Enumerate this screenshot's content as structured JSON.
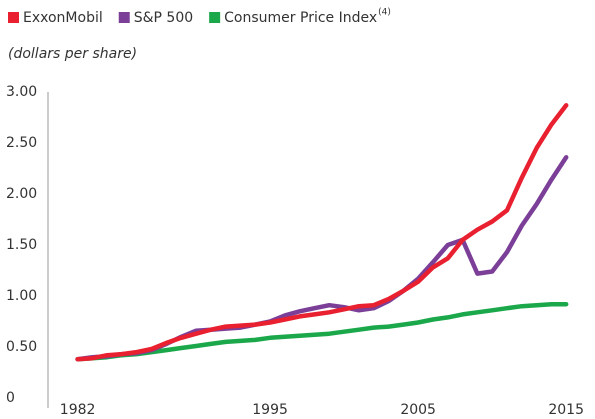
{
  "chart_data": {
    "type": "line",
    "subtitle": "(dollars per share)",
    "x": [
      1982,
      1983,
      1984,
      1985,
      1986,
      1987,
      1988,
      1989,
      1990,
      1991,
      1992,
      1993,
      1994,
      1995,
      1996,
      1997,
      1998,
      1999,
      2000,
      2001,
      2002,
      2003,
      2004,
      2005,
      2006,
      2007,
      2008,
      2009,
      2010,
      2011,
      2012,
      2013,
      2014,
      2015
    ],
    "series": [
      {
        "name": "ExxonMobil",
        "color": "#e8202f",
        "values": [
          0.38,
          0.39,
          0.42,
          0.43,
          0.45,
          0.48,
          0.54,
          0.59,
          0.63,
          0.67,
          0.7,
          0.71,
          0.72,
          0.74,
          0.77,
          0.8,
          0.82,
          0.84,
          0.87,
          0.9,
          0.91,
          0.97,
          1.05,
          1.14,
          1.28,
          1.37,
          1.55,
          1.65,
          1.73,
          1.84,
          2.16,
          2.45,
          2.68,
          2.87
        ]
      },
      {
        "name": "S&P 500",
        "color": "#7b3f98",
        "values": [
          0.38,
          0.4,
          0.41,
          0.43,
          0.44,
          0.47,
          0.53,
          0.6,
          0.66,
          0.67,
          0.68,
          0.69,
          0.72,
          0.75,
          0.81,
          0.85,
          0.88,
          0.91,
          0.89,
          0.86,
          0.88,
          0.95,
          1.05,
          1.17,
          1.33,
          1.5,
          1.55,
          1.22,
          1.24,
          1.43,
          1.69,
          1.9,
          2.14,
          2.36
        ]
      },
      {
        "name": "Consumer Price Index",
        "note": "(4)",
        "color": "#1aa84b",
        "values": [
          0.38,
          0.39,
          0.4,
          0.42,
          0.43,
          0.45,
          0.47,
          0.49,
          0.51,
          0.53,
          0.55,
          0.56,
          0.57,
          0.59,
          0.6,
          0.61,
          0.62,
          0.63,
          0.65,
          0.67,
          0.69,
          0.7,
          0.72,
          0.74,
          0.77,
          0.79,
          0.82,
          0.84,
          0.86,
          0.88,
          0.9,
          0.91,
          0.92,
          0.92
        ]
      }
    ],
    "xlim": [
      1980,
      2016
    ],
    "xticks": [
      1982,
      1995,
      2005,
      2015
    ],
    "ylim": [
      0,
      3
    ],
    "yticks": [
      0,
      {
        "value": 0.5,
        "label": "0.50"
      },
      {
        "value": 1,
        "label": "1.00"
      },
      {
        "value": 1.5,
        "label": "1.50"
      },
      {
        "value": 2,
        "label": "2.00"
      },
      {
        "value": 2.5,
        "label": "2.50"
      },
      {
        "value": 3,
        "label": "3.00"
      }
    ],
    "grid": false
  }
}
